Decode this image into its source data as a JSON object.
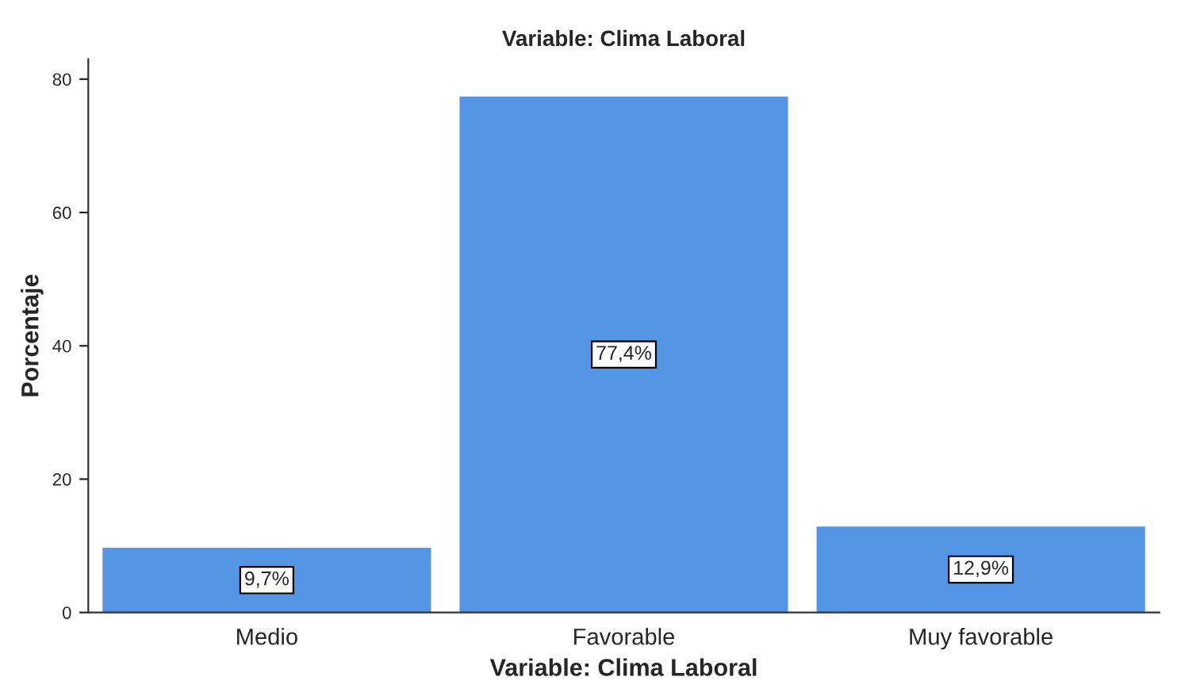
{
  "chart_data": {
    "type": "bar",
    "title": "Variable: Clima Laboral",
    "xlabel": "Variable: Clima Laboral",
    "ylabel": "Porcentaje",
    "categories": [
      "Medio",
      "Favorable",
      "Muy favorable"
    ],
    "values": [
      9.7,
      77.4,
      12.9
    ],
    "value_labels": [
      "9,7%",
      "77,4%",
      "12,9%"
    ],
    "color": "#5595e5",
    "ylim": [
      0,
      83
    ],
    "yticks": [
      0,
      20,
      40,
      60,
      80
    ],
    "grid": false,
    "legend": false
  }
}
